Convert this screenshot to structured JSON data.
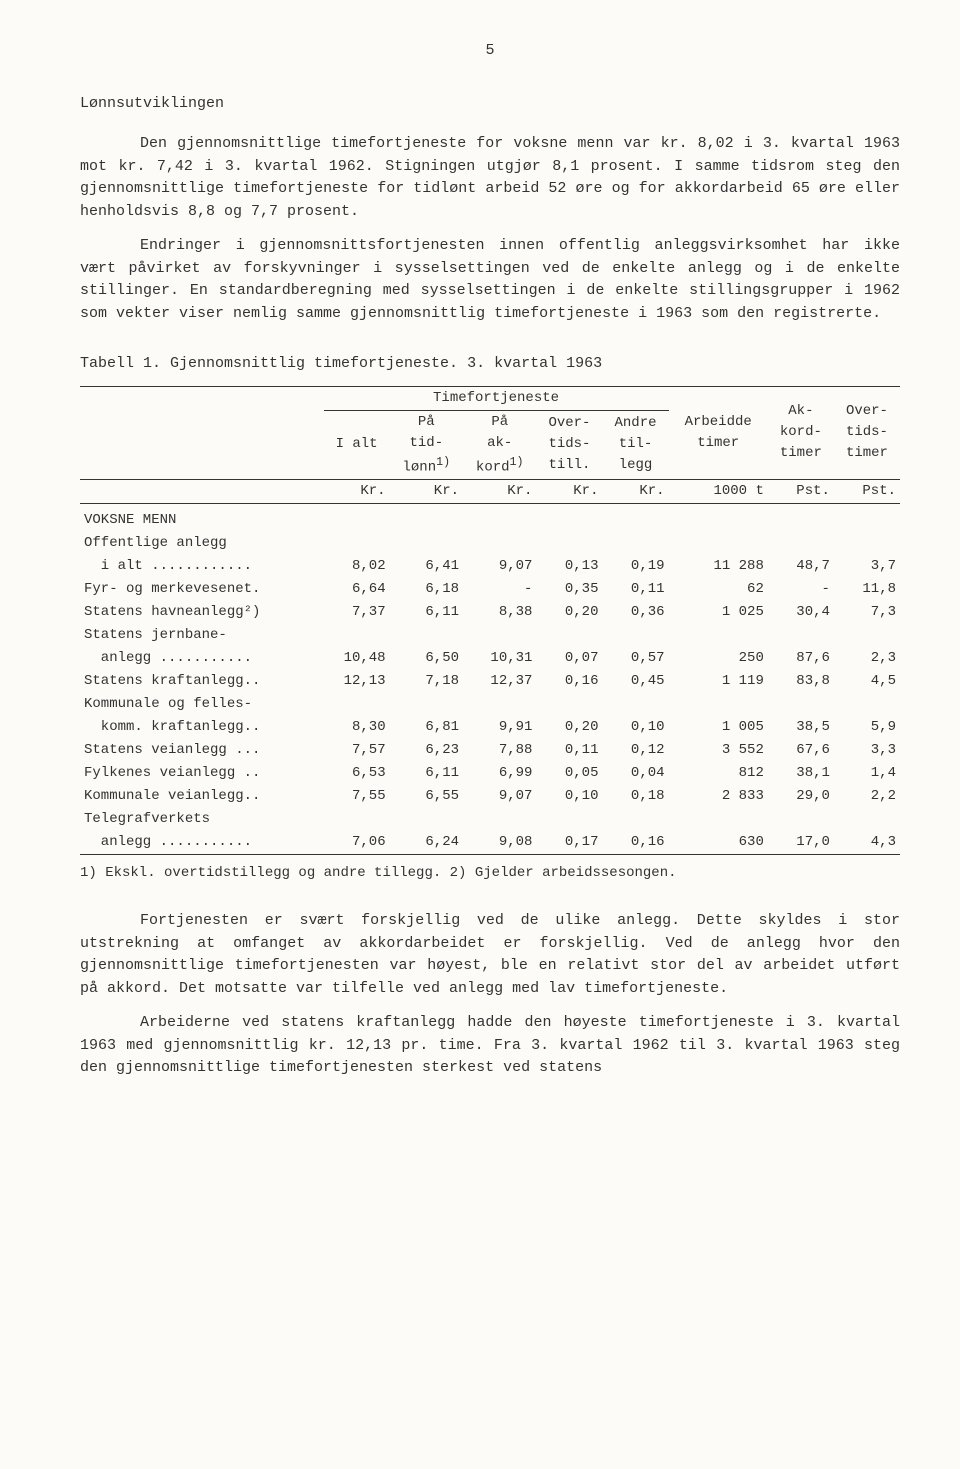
{
  "page_number": "5",
  "section_title": "Lønnsutviklingen",
  "para1": "Den gjennomsnittlige timefortjeneste for voksne menn var kr. 8,02 i 3. kvartal 1963 mot kr. 7,42 i 3. kvartal 1962. Stigningen utgjør 8,1 prosent. I samme tidsrom steg den gjennomsnittlige timefortjeneste for tidlønt arbeid 52 øre og for akkordarbeid 65 øre eller henholdsvis 8,8 og 7,7 prosent.",
  "para2": "Endringer i gjennomsnittsfortjenesten innen offentlig anleggsvirksomhet har ikke vært påvirket av forskyvninger i sysselsettingen ved de enkelte anlegg og i de enkelte stillinger. En standardberegning med sysselsettingen i de enkelte stillingsgrupper i 1962  som vekter  viser nemlig samme gjennomsnittlig timefortjeneste i 1963 som den registrerte.",
  "table_caption": "Tabell 1.  Gjennomsnittlig timefortjeneste.  3. kvartal 1963",
  "headers": {
    "group": "Timefortjeneste",
    "ialt": "I alt",
    "tidlonn": "På\ntid-\nlønn",
    "tidlonn_sup": "1)",
    "akkord": "På\nak-\nkord",
    "akkord_sup": "1)",
    "overtid": "Over-\ntids-\ntill.",
    "andre": "Andre\ntil-\nlegg",
    "arbtimer": "Arbeidde\ntimer",
    "akkordtimer": "Ak-\nkord-\ntimer",
    "overtidstimer": "Over-\ntids-\ntimer"
  },
  "units": {
    "kr": "Kr.",
    "t1000": "1000 t",
    "pst": "Pst."
  },
  "section_hdr": "VOKSNE MENN",
  "subsection": "Offentlige anlegg",
  "rows": [
    {
      "label": "  i alt ............",
      "v": [
        "8,02",
        "6,41",
        "9,07",
        "0,13",
        "0,19",
        "11 288",
        "48,7",
        "3,7"
      ]
    },
    {
      "label": "Fyr- og merkevesenet.",
      "v": [
        "6,64",
        "6,18",
        "-",
        "0,35",
        "0,11",
        "62",
        "-",
        "11,8"
      ]
    },
    {
      "label": "Statens havneanlegg²)",
      "v": [
        "7,37",
        "6,11",
        "8,38",
        "0,20",
        "0,36",
        "1 025",
        "30,4",
        "7,3"
      ]
    },
    {
      "label": "Statens jernbane-\n  anlegg ...........",
      "v": [
        "10,48",
        "6,50",
        "10,31",
        "0,07",
        "0,57",
        "250",
        "87,6",
        "2,3"
      ],
      "twoline": true
    },
    {
      "label": "Statens kraftanlegg..",
      "v": [
        "12,13",
        "7,18",
        "12,37",
        "0,16",
        "0,45",
        "1 119",
        "83,8",
        "4,5"
      ]
    },
    {
      "label": "Kommunale og felles-\n  komm. kraftanlegg..",
      "v": [
        "8,30",
        "6,81",
        "9,91",
        "0,20",
        "0,10",
        "1 005",
        "38,5",
        "5,9"
      ],
      "twoline": true
    },
    {
      "label": "Statens veianlegg ...",
      "v": [
        "7,57",
        "6,23",
        "7,88",
        "0,11",
        "0,12",
        "3 552",
        "67,6",
        "3,3"
      ]
    },
    {
      "label": "Fylkenes veianlegg ..",
      "v": [
        "6,53",
        "6,11",
        "6,99",
        "0,05",
        "0,04",
        "812",
        "38,1",
        "1,4"
      ]
    },
    {
      "label": "Kommunale veianlegg..",
      "v": [
        "7,55",
        "6,55",
        "9,07",
        "0,10",
        "0,18",
        "2 833",
        "29,0",
        "2,2"
      ]
    },
    {
      "label": "Telegrafverkets\n  anlegg ...........",
      "v": [
        "7,06",
        "6,24",
        "9,08",
        "0,17",
        "0,16",
        "630",
        "17,0",
        "4,3"
      ],
      "twoline": true
    }
  ],
  "footnote": "1) Ekskl. overtidstillegg og andre tillegg.   2) Gjelder arbeidssesongen.",
  "para3": "Fortjenesten er svært forskjellig ved de ulike anlegg. Dette skyldes i stor utstrekning at omfanget av akkordarbeidet er forskjellig. Ved de anlegg hvor den gjennomsnittlige timefortjenesten var høyest, ble en relativt stor del av arbeidet utført på akkord. Det motsatte var tilfelle ved anlegg med lav timefortjeneste.",
  "para4": "Arbeiderne ved statens kraftanlegg hadde den høyeste timefortjeneste i 3. kvartal 1963 med gjennomsnittlig kr. 12,13 pr. time. Fra 3. kvartal 1962 til 3. kvartal 1963 steg den gjennomsnittlige timefortjenesten sterkest ved statens"
}
